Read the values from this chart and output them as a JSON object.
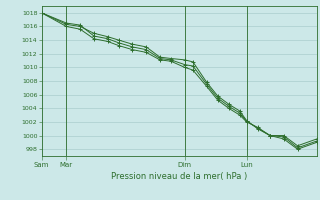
{
  "title": "",
  "xlabel": "Pression niveau de la mer( hPa )",
  "ylim": [
    997,
    1019
  ],
  "yticks": [
    998,
    1000,
    1002,
    1004,
    1006,
    1008,
    1010,
    1012,
    1014,
    1016,
    1018
  ],
  "bg_color": "#cce8e8",
  "grid_color": "#aacece",
  "line_color": "#2d6e2d",
  "marker_color": "#2d6e2d",
  "x_tick_labels": [
    "Sam",
    "Mar",
    "Dim",
    "Lun"
  ],
  "x_tick_positions": [
    0.0,
    0.09,
    0.52,
    0.745
  ],
  "vline_positions": [
    0.0,
    0.09,
    0.52,
    0.745
  ],
  "series1": [
    [
      0.0,
      1018.0
    ],
    [
      0.09,
      1016.0
    ],
    [
      0.14,
      1015.6
    ],
    [
      0.19,
      1014.2
    ],
    [
      0.24,
      1013.8
    ],
    [
      0.28,
      1013.2
    ],
    [
      0.33,
      1012.6
    ],
    [
      0.38,
      1012.2
    ],
    [
      0.43,
      1011.1
    ],
    [
      0.47,
      1010.9
    ],
    [
      0.52,
      1010.0
    ],
    [
      0.55,
      1009.6
    ],
    [
      0.6,
      1007.2
    ],
    [
      0.64,
      1005.2
    ],
    [
      0.68,
      1004.0
    ],
    [
      0.72,
      1003.0
    ],
    [
      0.745,
      1002.0
    ],
    [
      0.785,
      1001.2
    ],
    [
      0.83,
      1000.0
    ],
    [
      0.88,
      999.5
    ],
    [
      0.93,
      998.0
    ],
    [
      1.0,
      999.0
    ]
  ],
  "series2": [
    [
      0.0,
      1018.0
    ],
    [
      0.09,
      1016.3
    ],
    [
      0.14,
      1016.0
    ],
    [
      0.19,
      1015.0
    ],
    [
      0.24,
      1014.5
    ],
    [
      0.28,
      1014.0
    ],
    [
      0.33,
      1013.4
    ],
    [
      0.38,
      1013.0
    ],
    [
      0.43,
      1011.5
    ],
    [
      0.47,
      1011.3
    ],
    [
      0.52,
      1011.1
    ],
    [
      0.55,
      1010.8
    ],
    [
      0.6,
      1007.8
    ],
    [
      0.64,
      1005.8
    ],
    [
      0.68,
      1004.6
    ],
    [
      0.72,
      1003.6
    ],
    [
      0.745,
      1002.2
    ],
    [
      0.785,
      1001.0
    ],
    [
      0.83,
      1000.0
    ],
    [
      0.88,
      1000.0
    ],
    [
      0.93,
      998.5
    ],
    [
      1.0,
      999.5
    ]
  ],
  "series3": [
    [
      0.0,
      1018.0
    ],
    [
      0.09,
      1016.5
    ],
    [
      0.14,
      1016.2
    ],
    [
      0.19,
      1014.6
    ],
    [
      0.24,
      1014.2
    ],
    [
      0.28,
      1013.6
    ],
    [
      0.33,
      1013.0
    ],
    [
      0.38,
      1012.6
    ],
    [
      0.43,
      1011.3
    ],
    [
      0.47,
      1011.1
    ],
    [
      0.52,
      1010.4
    ],
    [
      0.55,
      1010.2
    ],
    [
      0.6,
      1007.5
    ],
    [
      0.64,
      1005.5
    ],
    [
      0.68,
      1004.3
    ],
    [
      0.72,
      1003.3
    ],
    [
      0.745,
      1002.1
    ],
    [
      0.785,
      1001.1
    ],
    [
      0.83,
      1000.0
    ],
    [
      0.88,
      999.8
    ],
    [
      0.93,
      998.2
    ],
    [
      1.0,
      999.2
    ]
  ]
}
